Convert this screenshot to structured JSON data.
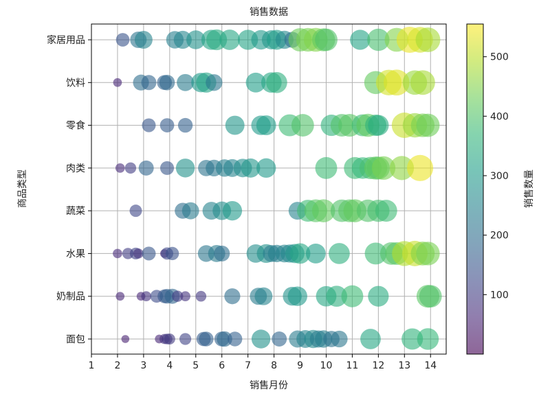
{
  "chart_data": {
    "type": "scatter",
    "title": "销售数据",
    "xlabel": "销售月份",
    "ylabel": "商品类型",
    "xlim": [
      1,
      14.6
    ],
    "xticks": [
      1,
      2,
      3,
      4,
      5,
      6,
      7,
      8,
      9,
      10,
      11,
      12,
      13,
      14
    ],
    "categories": [
      "面包",
      "奶制品",
      "水果",
      "蔬菜",
      "肉类",
      "零食",
      "饮料",
      "家居用品"
    ],
    "grid": true,
    "colorbar": {
      "label": "销售数量",
      "range": [
        0,
        555
      ],
      "ticks": [
        100,
        200,
        300,
        400,
        500
      ],
      "colormap": "viridis",
      "alpha": 0.6
    },
    "size_encoding": "sales_quantity",
    "series": [
      {
        "category": "家居用品",
        "points": [
          [
            2.2,
            145
          ],
          [
            2.8,
            215
          ],
          [
            3.0,
            250
          ],
          [
            4.2,
            240
          ],
          [
            4.5,
            255
          ],
          [
            5.0,
            280
          ],
          [
            5.6,
            320
          ],
          [
            5.8,
            340
          ],
          [
            6.3,
            330
          ],
          [
            7.0,
            320
          ],
          [
            7.5,
            300
          ],
          [
            7.9,
            290
          ],
          [
            8.1,
            310
          ],
          [
            8.4,
            260
          ],
          [
            8.7,
            200
          ],
          [
            9.0,
            430
          ],
          [
            9.3,
            440
          ],
          [
            9.6,
            450
          ],
          [
            9.9,
            420
          ],
          [
            10.0,
            400
          ],
          [
            11.3,
            320
          ],
          [
            12.0,
            390
          ],
          [
            12.7,
            450
          ],
          [
            13.2,
            540
          ],
          [
            13.6,
            520
          ],
          [
            13.9,
            480
          ]
        ]
      },
      {
        "category": "饮料",
        "points": [
          [
            2.0,
            60
          ],
          [
            2.9,
            200
          ],
          [
            3.2,
            180
          ],
          [
            3.8,
            175
          ],
          [
            3.9,
            190
          ],
          [
            4.6,
            230
          ],
          [
            5.2,
            300
          ],
          [
            5.4,
            320
          ],
          [
            5.7,
            220
          ],
          [
            7.3,
            310
          ],
          [
            7.9,
            330
          ],
          [
            8.1,
            350
          ],
          [
            11.9,
            420
          ],
          [
            12.4,
            520
          ],
          [
            12.7,
            530
          ],
          [
            13.4,
            470
          ],
          [
            13.7,
            480
          ]
        ]
      },
      {
        "category": "零食",
        "points": [
          [
            3.2,
            150
          ],
          [
            3.9,
            160
          ],
          [
            4.6,
            170
          ],
          [
            6.5,
            290
          ],
          [
            7.5,
            300
          ],
          [
            7.7,
            310
          ],
          [
            8.6,
            380
          ],
          [
            9.1,
            400
          ],
          [
            10.2,
            360
          ],
          [
            10.6,
            400
          ],
          [
            10.9,
            410
          ],
          [
            11.4,
            380
          ],
          [
            11.6,
            420
          ],
          [
            11.9,
            360
          ],
          [
            12.0,
            340
          ],
          [
            13.0,
            510
          ],
          [
            13.4,
            470
          ],
          [
            13.7,
            440
          ],
          [
            13.9,
            430
          ]
        ]
      },
      {
        "category": "肉类",
        "points": [
          [
            2.1,
            70
          ],
          [
            2.5,
            100
          ],
          [
            3.1,
            180
          ],
          [
            3.9,
            150
          ],
          [
            4.6,
            280
          ],
          [
            5.4,
            210
          ],
          [
            5.7,
            220
          ],
          [
            6.1,
            240
          ],
          [
            6.4,
            250
          ],
          [
            6.8,
            270
          ],
          [
            7.1,
            290
          ],
          [
            7.7,
            300
          ],
          [
            10.0,
            380
          ],
          [
            11.1,
            380
          ],
          [
            11.4,
            370
          ],
          [
            11.7,
            390
          ],
          [
            11.9,
            420
          ],
          [
            12.0,
            410
          ],
          [
            12.2,
            440
          ],
          [
            12.9,
            460
          ],
          [
            13.6,
            540
          ]
        ]
      },
      {
        "category": "蔬菜",
        "points": [
          [
            2.7,
            120
          ],
          [
            4.5,
            200
          ],
          [
            4.8,
            230
          ],
          [
            5.6,
            250
          ],
          [
            6.0,
            270
          ],
          [
            6.4,
            300
          ],
          [
            8.9,
            250
          ],
          [
            9.3,
            380
          ],
          [
            9.6,
            410
          ],
          [
            9.9,
            420
          ],
          [
            10.6,
            400
          ],
          [
            10.9,
            410
          ],
          [
            11.1,
            420
          ],
          [
            11.6,
            400
          ],
          [
            12.0,
            390
          ],
          [
            12.3,
            380
          ]
        ]
      },
      {
        "category": "水果",
        "points": [
          [
            2.0,
            70
          ],
          [
            2.4,
            100
          ],
          [
            2.7,
            110
          ],
          [
            2.8,
            80
          ],
          [
            3.2,
            150
          ],
          [
            3.8,
            60
          ],
          [
            3.9,
            120
          ],
          [
            4.1,
            140
          ],
          [
            5.4,
            220
          ],
          [
            5.8,
            230
          ],
          [
            6.0,
            200
          ],
          [
            7.3,
            270
          ],
          [
            7.7,
            280
          ],
          [
            7.9,
            230
          ],
          [
            8.1,
            240
          ],
          [
            8.4,
            250
          ],
          [
            8.6,
            260
          ],
          [
            8.8,
            290
          ],
          [
            9.0,
            330
          ],
          [
            9.6,
            310
          ],
          [
            10.5,
            350
          ],
          [
            11.9,
            380
          ],
          [
            12.5,
            400
          ],
          [
            12.7,
            410
          ],
          [
            13.0,
            490
          ],
          [
            13.4,
            510
          ],
          [
            13.7,
            450
          ],
          [
            13.9,
            440
          ]
        ]
      },
      {
        "category": "奶制品",
        "points": [
          [
            2.1,
            60
          ],
          [
            2.9,
            60
          ],
          [
            3.1,
            80
          ],
          [
            3.5,
            130
          ],
          [
            3.8,
            150
          ],
          [
            3.9,
            170
          ],
          [
            4.1,
            180
          ],
          [
            4.3,
            100
          ],
          [
            4.6,
            80
          ],
          [
            5.2,
            90
          ],
          [
            6.4,
            200
          ],
          [
            7.4,
            230
          ],
          [
            7.6,
            250
          ],
          [
            8.7,
            280
          ],
          [
            8.9,
            300
          ],
          [
            10.0,
            330
          ],
          [
            10.4,
            350
          ],
          [
            11.0,
            380
          ],
          [
            12.0,
            340
          ],
          [
            13.9,
            410
          ],
          [
            14.0,
            400
          ]
        ]
      },
      {
        "category": "面包",
        "points": [
          [
            2.3,
            50
          ],
          [
            3.6,
            60
          ],
          [
            3.8,
            80
          ],
          [
            3.9,
            90
          ],
          [
            4.0,
            95
          ],
          [
            4.6,
            110
          ],
          [
            5.3,
            160
          ],
          [
            5.4,
            170
          ],
          [
            6.0,
            175
          ],
          [
            6.1,
            190
          ],
          [
            6.5,
            170
          ],
          [
            7.5,
            280
          ],
          [
            8.2,
            180
          ],
          [
            8.9,
            230
          ],
          [
            9.2,
            250
          ],
          [
            9.5,
            260
          ],
          [
            9.7,
            230
          ],
          [
            9.9,
            240
          ],
          [
            10.2,
            210
          ],
          [
            10.5,
            220
          ],
          [
            11.7,
            330
          ],
          [
            13.3,
            360
          ],
          [
            13.9,
            370
          ]
        ]
      }
    ]
  }
}
